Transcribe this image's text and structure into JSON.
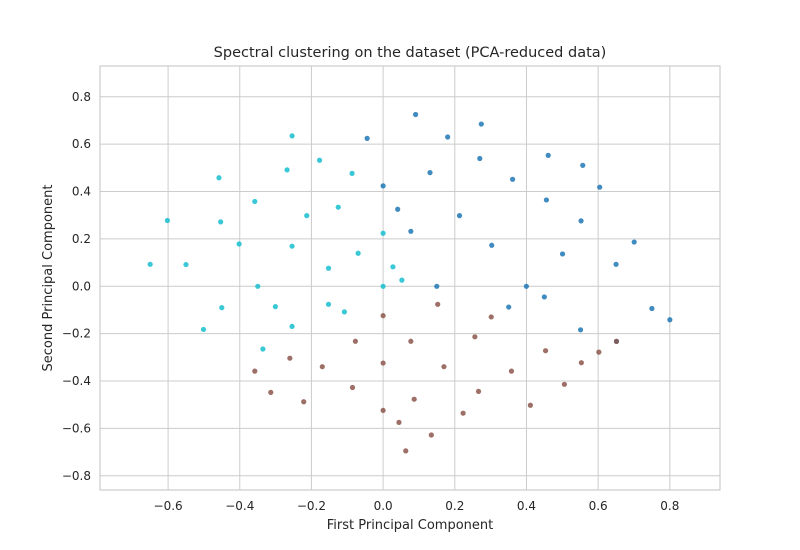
{
  "chart_data": {
    "type": "scatter",
    "title": "Spectral clustering on the dataset (PCA-reduced data)",
    "xlabel": "First Principal Component",
    "ylabel": "Second Principal Component",
    "xlim": [
      -0.79,
      0.94
    ],
    "ylim": [
      -0.86,
      0.93
    ],
    "xticks": [
      -0.6,
      -0.4,
      -0.2,
      0.0,
      0.2,
      0.4,
      0.6,
      0.8
    ],
    "xtick_labels": [
      "−0.6",
      "−0.4",
      "−0.2",
      "0.0",
      "0.2",
      "0.4",
      "0.6",
      "0.8"
    ],
    "yticks": [
      -0.8,
      -0.6,
      -0.4,
      -0.2,
      0.0,
      0.2,
      0.4,
      0.6,
      0.8
    ],
    "ytick_labels": [
      "−0.8",
      "−0.6",
      "−0.4",
      "−0.2",
      "0.0",
      "0.2",
      "0.4",
      "0.6",
      "0.8"
    ],
    "grid": true,
    "legend": "none",
    "series": [
      {
        "color": "#17becf",
        "points": [
          [
            -0.5,
            0.3
          ],
          [
            -0.4,
            0.4
          ],
          [
            -0.3,
            0.55
          ],
          [
            -0.2,
            0.6
          ],
          [
            -0.1,
            0.55
          ],
          [
            -0.3,
            0.2
          ],
          [
            -0.2,
            0.1
          ],
          [
            -0.4,
            0.0
          ],
          [
            -0.5,
            -0.1
          ],
          [
            -0.6,
            0.1
          ],
          [
            -0.3,
            -0.2
          ],
          [
            -0.2,
            -0.1
          ],
          [
            -0.1,
            0.2
          ],
          [
            0.0,
            0.3
          ],
          [
            0.05,
            0.15
          ],
          [
            -0.05,
            0.0
          ],
          [
            -0.15,
            -0.15
          ],
          [
            -0.38,
            -0.3
          ],
          [
            -0.7,
            0.1
          ],
          [
            -0.65,
            0.3
          ],
          [
            -0.45,
            0.2
          ],
          [
            -0.35,
            -0.1
          ],
          [
            -0.25,
            0.35
          ],
          [
            -0.15,
            0.4
          ],
          [
            -0.5,
            0.5
          ],
          [
            -0.55,
            -0.2
          ],
          [
            -0.28,
            0.7
          ],
          [
            0.1,
            0.05
          ]
        ]
      },
      {
        "color": "#1f77b4",
        "points": [
          [
            0.1,
            0.8
          ],
          [
            0.2,
            0.7
          ],
          [
            0.3,
            0.6
          ],
          [
            0.4,
            0.5
          ],
          [
            0.5,
            0.4
          ],
          [
            0.6,
            0.3
          ],
          [
            0.7,
            0.1
          ],
          [
            0.8,
            -0.1
          ],
          [
            0.6,
            -0.2
          ],
          [
            0.4,
            -0.1
          ],
          [
            0.2,
            0.0
          ],
          [
            0.1,
            0.3
          ],
          [
            0.0,
            0.5
          ],
          [
            -0.05,
            0.7
          ],
          [
            0.15,
            0.55
          ],
          [
            0.25,
            0.35
          ],
          [
            0.35,
            0.2
          ],
          [
            0.45,
            0.0
          ],
          [
            0.55,
            0.15
          ],
          [
            0.65,
            0.45
          ],
          [
            0.5,
            0.6
          ],
          [
            0.3,
            0.75
          ],
          [
            0.75,
            0.2
          ],
          [
            0.85,
            -0.15
          ],
          [
            0.7,
            -0.25
          ],
          [
            0.05,
            0.4
          ],
          [
            0.5,
            -0.05
          ],
          [
            0.6,
            0.55
          ]
        ]
      },
      {
        "color": "#8c564b",
        "points": [
          [
            0.0,
            -0.2
          ],
          [
            0.1,
            -0.3
          ],
          [
            0.2,
            -0.4
          ],
          [
            0.3,
            -0.5
          ],
          [
            0.4,
            -0.4
          ],
          [
            0.5,
            -0.3
          ],
          [
            0.6,
            -0.35
          ],
          [
            0.7,
            -0.25
          ],
          [
            0.2,
            -0.1
          ],
          [
            0.1,
            -0.55
          ],
          [
            0.0,
            -0.6
          ],
          [
            -0.1,
            -0.5
          ],
          [
            -0.2,
            -0.4
          ],
          [
            -0.3,
            -0.35
          ],
          [
            -0.4,
            -0.4
          ],
          [
            -0.1,
            -0.3
          ],
          [
            0.05,
            -0.65
          ],
          [
            0.3,
            -0.25
          ],
          [
            0.45,
            -0.55
          ],
          [
            0.55,
            -0.45
          ],
          [
            0.25,
            -0.6
          ],
          [
            0.15,
            -0.7
          ],
          [
            -0.25,
            -0.55
          ],
          [
            0.35,
            -0.15
          ],
          [
            0.0,
            -0.4
          ],
          [
            0.65,
            -0.3
          ],
          [
            -0.35,
            -0.5
          ],
          [
            0.07,
            -0.77
          ]
        ]
      }
    ]
  }
}
